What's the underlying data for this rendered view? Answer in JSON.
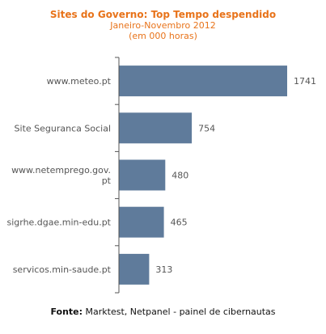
{
  "header": {
    "title": "Sites do Governo: Top Tempo despendido",
    "subtitle_line1": "Janeiro-Novembro 2012",
    "subtitle_line2": "(em 000 horas)"
  },
  "footer": {
    "source_label": "Fonte:",
    "source_text": "Marktest, Netpanel - painel de cibernautas"
  },
  "colors": {
    "title": "#e8731a",
    "bar": "#5f7b9b",
    "axis": "#555555",
    "label": "#555555"
  },
  "chart_data": {
    "type": "bar",
    "orientation": "horizontal",
    "categories": [
      [
        "www.meteo.pt"
      ],
      [
        "Site Seguranca Social"
      ],
      [
        "www.netemprego.gov.",
        "pt"
      ],
      [
        "sigrhe.dgae.min-edu.pt"
      ],
      [
        "servicos.min-saude.pt"
      ]
    ],
    "values": [
      1741,
      754,
      480,
      465,
      313
    ],
    "data_labels": [
      "1741",
      "754",
      "480",
      "465",
      "313"
    ],
    "xlim": [
      0,
      1741
    ],
    "grid": false,
    "legend": "none"
  }
}
